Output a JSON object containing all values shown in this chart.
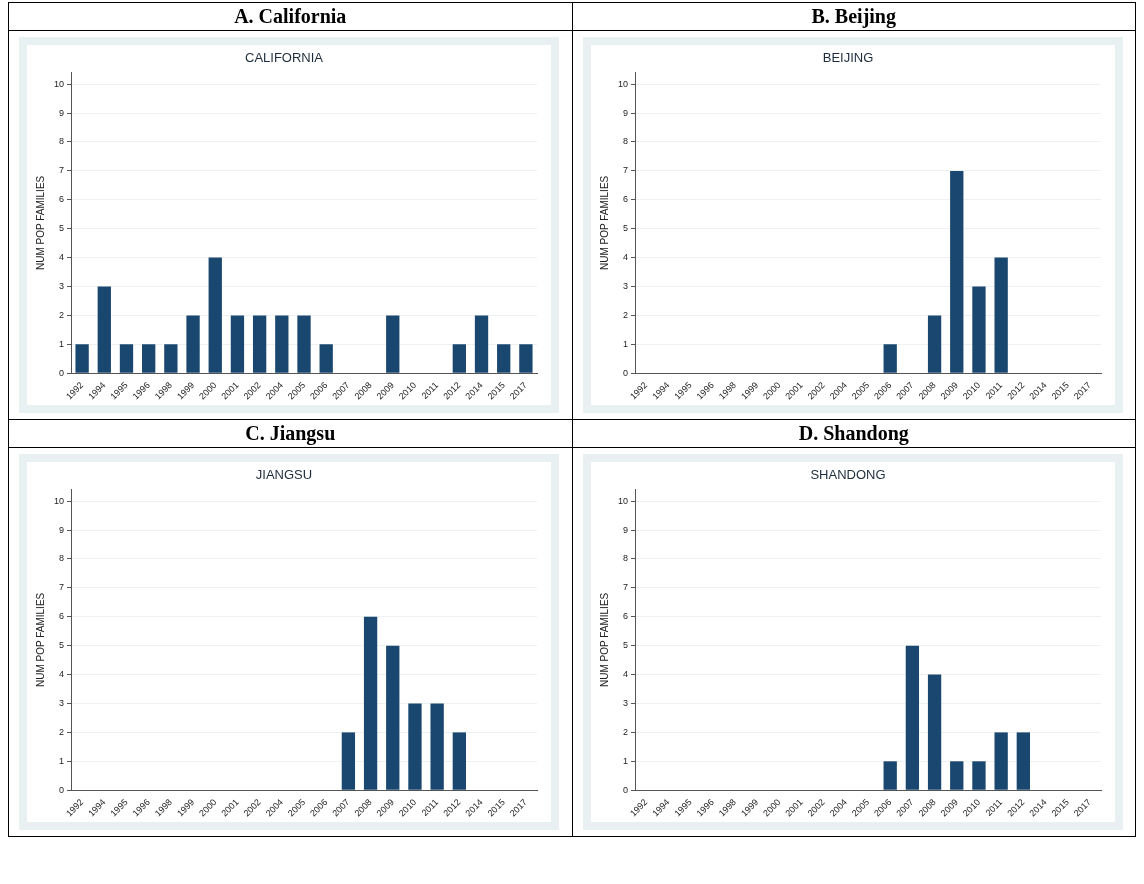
{
  "chart_data": [
    {
      "type": "bar",
      "title": "A. California",
      "subtitle": "CALIFORNIA",
      "ylabel": "NUM POP FAMILIES",
      "categories": [
        "1992",
        "1994",
        "1995",
        "1996",
        "1998",
        "1999",
        "2000",
        "2001",
        "2002",
        "2004",
        "2005",
        "2006",
        "2007",
        "2008",
        "2009",
        "2010",
        "2011",
        "2012",
        "2014",
        "2015",
        "2017"
      ],
      "values": [
        1,
        3,
        1,
        1,
        1,
        2,
        4,
        2,
        2,
        2,
        2,
        1,
        0,
        0,
        2,
        0,
        0,
        1,
        2,
        1,
        1
      ],
      "color": "#1a476f",
      "ylim": [
        0,
        10.4
      ],
      "yticks": [
        0,
        1,
        2,
        3,
        4,
        5,
        6,
        7,
        8,
        9,
        10
      ],
      "grid": "y"
    },
    {
      "type": "bar",
      "title": "B. Beijing",
      "subtitle": "BEIJING",
      "ylabel": "NUM POP FAMILIES",
      "categories": [
        "1992",
        "1994",
        "1995",
        "1996",
        "1998",
        "1999",
        "2000",
        "2001",
        "2002",
        "2004",
        "2005",
        "2006",
        "2007",
        "2008",
        "2009",
        "2010",
        "2011",
        "2012",
        "2014",
        "2015",
        "2017"
      ],
      "values": [
        0,
        0,
        0,
        0,
        0,
        0,
        0,
        0,
        0,
        0,
        0,
        1,
        0,
        2,
        7,
        3,
        4,
        0,
        0,
        0,
        0
      ],
      "color": "#1a476f",
      "ylim": [
        0,
        10.4
      ],
      "yticks": [
        0,
        1,
        2,
        3,
        4,
        5,
        6,
        7,
        8,
        9,
        10
      ],
      "grid": "y"
    },
    {
      "type": "bar",
      "title": "C. Jiangsu",
      "subtitle": "JIANGSU",
      "ylabel": "NUM POP FAMILIES",
      "categories": [
        "1992",
        "1994",
        "1995",
        "1996",
        "1998",
        "1999",
        "2000",
        "2001",
        "2002",
        "2004",
        "2005",
        "2006",
        "2007",
        "2008",
        "2009",
        "2010",
        "2011",
        "2012",
        "2014",
        "2015",
        "2017"
      ],
      "values": [
        0,
        0,
        0,
        0,
        0,
        0,
        0,
        0,
        0,
        0,
        0,
        0,
        2,
        6,
        5,
        3,
        3,
        2,
        0,
        0,
        0
      ],
      "color": "#1a476f",
      "ylim": [
        0,
        10.4
      ],
      "yticks": [
        0,
        1,
        2,
        3,
        4,
        5,
        6,
        7,
        8,
        9,
        10
      ],
      "grid": "y"
    },
    {
      "type": "bar",
      "title": "D. Shandong",
      "subtitle": "SHANDONG",
      "ylabel": "NUM POP FAMILIES",
      "categories": [
        "1992",
        "1994",
        "1995",
        "1996",
        "1998",
        "1999",
        "2000",
        "2001",
        "2002",
        "2004",
        "2005",
        "2006",
        "2007",
        "2008",
        "2009",
        "2010",
        "2011",
        "2012",
        "2014",
        "2015",
        "2017"
      ],
      "values": [
        0,
        0,
        0,
        0,
        0,
        0,
        0,
        0,
        0,
        0,
        0,
        1,
        5,
        4,
        1,
        1,
        2,
        2,
        0,
        0,
        0
      ],
      "color": "#1a476f",
      "ylim": [
        0,
        10.4
      ],
      "yticks": [
        0,
        1,
        2,
        3,
        4,
        5,
        6,
        7,
        8,
        9,
        10
      ],
      "grid": "y"
    }
  ]
}
